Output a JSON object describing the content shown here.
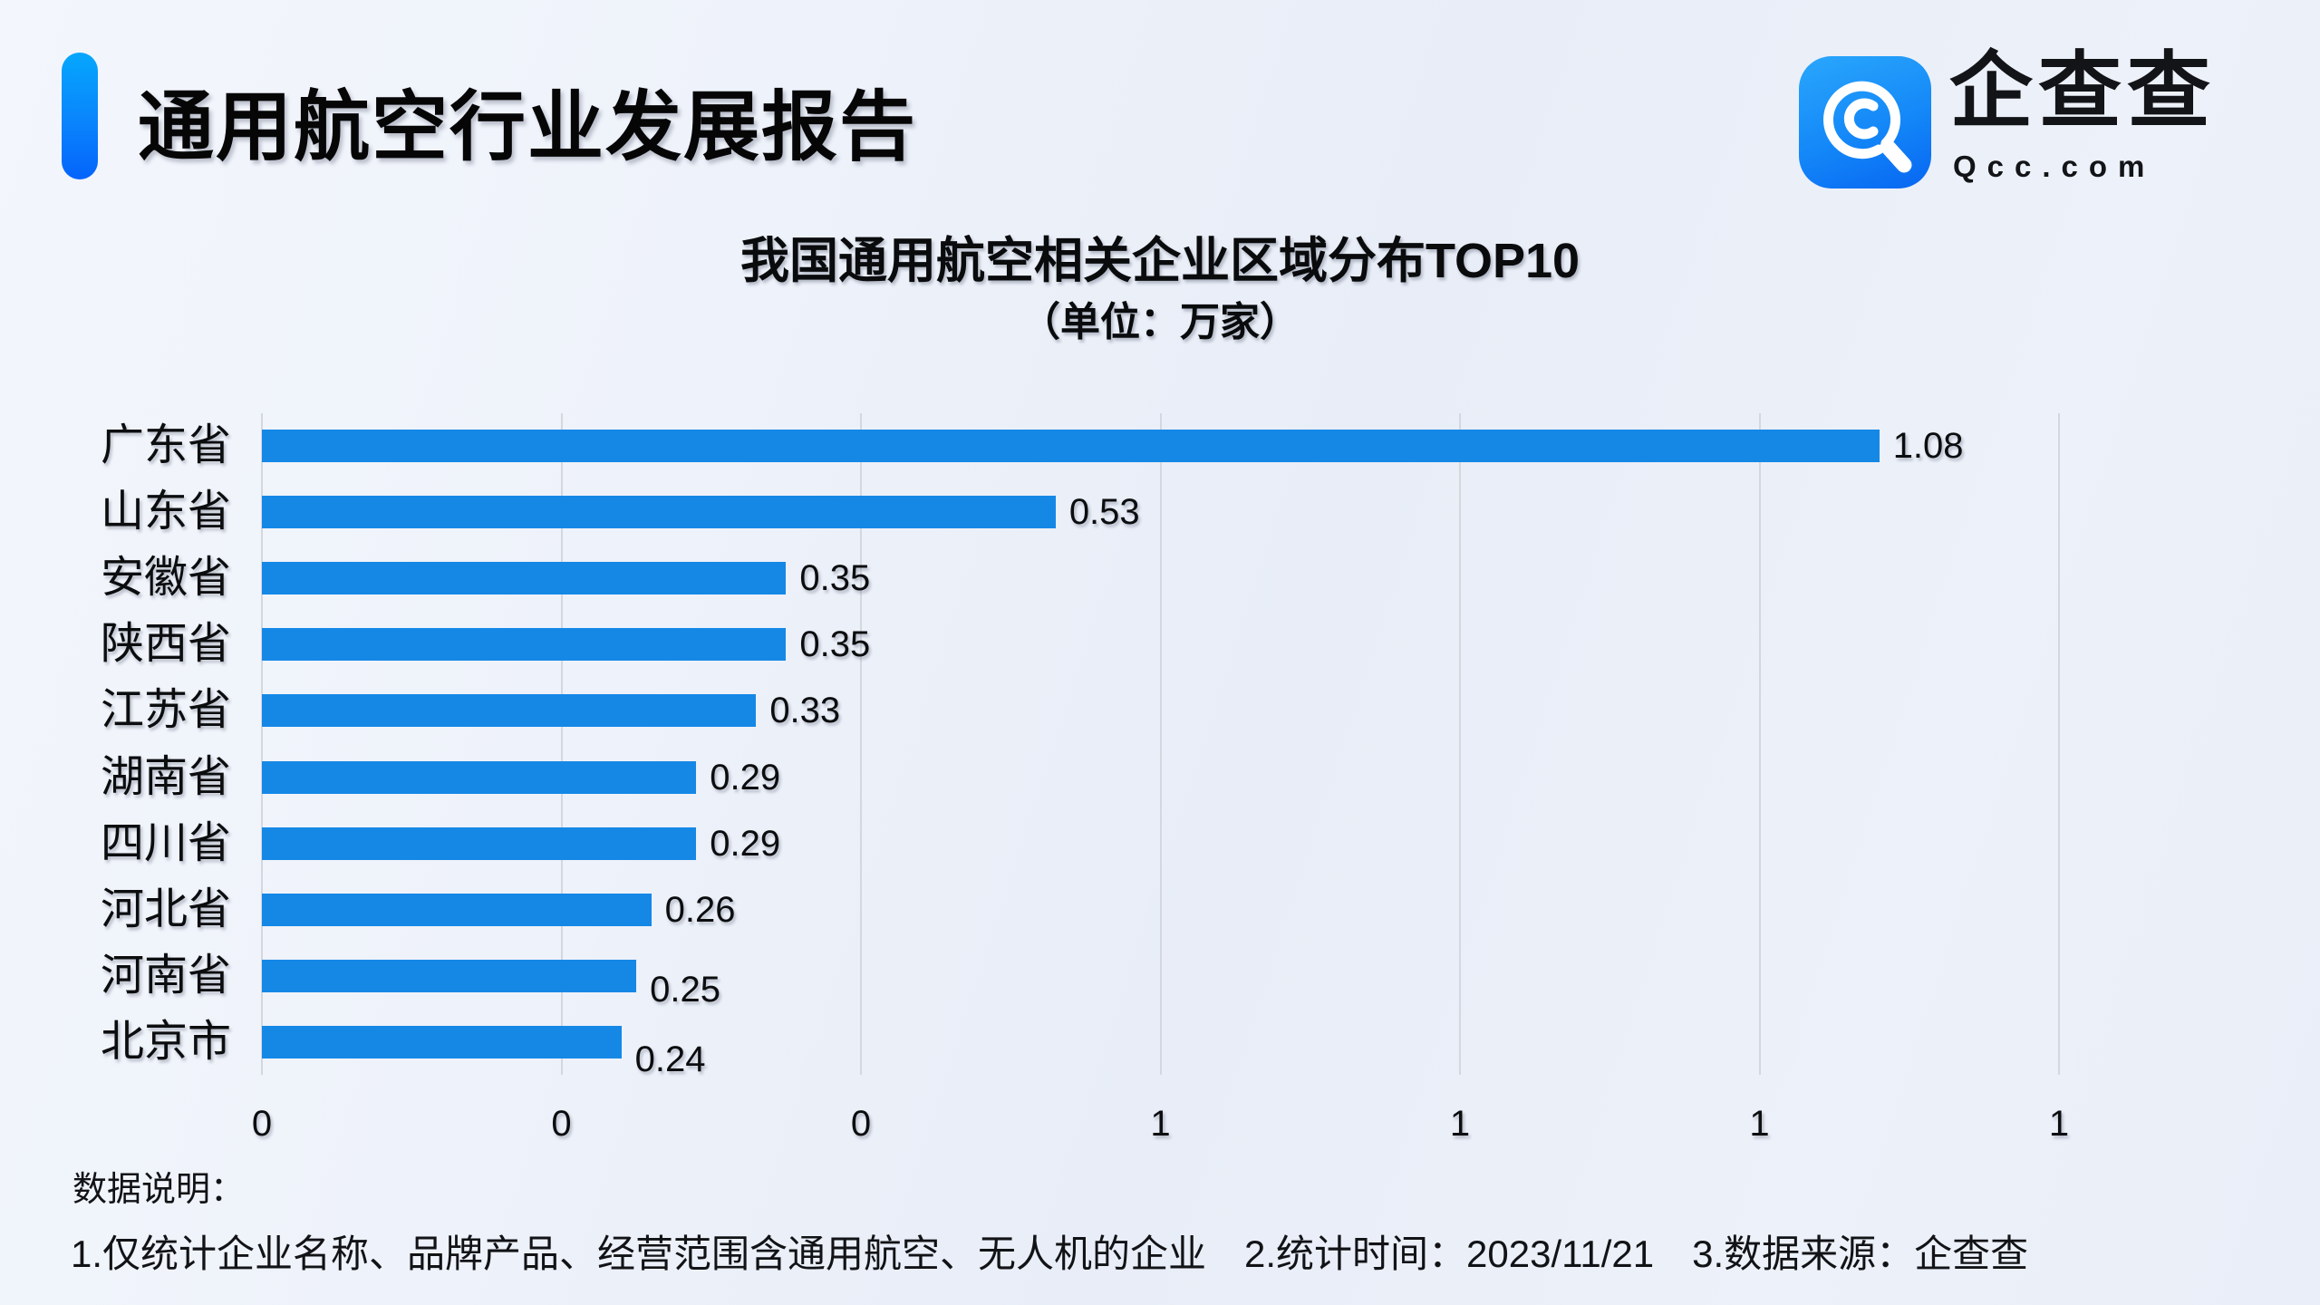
{
  "page": {
    "background_color": "#edf1f9",
    "accent_gradient_top": "#05a7fd",
    "accent_gradient_bottom": "#0464fb"
  },
  "header": {
    "title": "通用航空行业发展报告",
    "logo": {
      "icon": "qcc-magnifier-logo",
      "name_cn": "企查查",
      "domain": "Qcc.com",
      "icon_gradient_top": "#2aa7fc",
      "icon_gradient_bottom": "#0766f2"
    }
  },
  "chart_data": {
    "type": "bar",
    "orientation": "horizontal",
    "title": "我国通用航空相关企业区域分布TOP10",
    "unit_label": "（单位：万家）",
    "categories": [
      "广东省",
      "山东省",
      "安徽省",
      "陕西省",
      "江苏省",
      "湖南省",
      "四川省",
      "河北省",
      "河南省",
      "北京市"
    ],
    "values": [
      1.08,
      0.53,
      0.35,
      0.35,
      0.33,
      0.29,
      0.29,
      0.26,
      0.25,
      0.24
    ],
    "value_labels": [
      "1.08",
      "0.53",
      "0.35",
      "0.35",
      "0.33",
      "0.29",
      "0.29",
      "0.26",
      "0.25",
      "0.24"
    ],
    "bar_color": "#1588e6",
    "grid": true,
    "grid_color": "#d4d8de",
    "xlim": [
      0,
      1.2
    ],
    "x_ticks": [
      0,
      0.2,
      0.4,
      0.6,
      0.8,
      1.0,
      1.2
    ],
    "x_tick_labels": [
      "0",
      "0",
      "0",
      "1",
      "1",
      "1",
      "1"
    ],
    "legend": "none",
    "sorted": "descending"
  },
  "footer": {
    "heading": "数据说明：",
    "notes": [
      "1.仅统计企业名称、品牌产品、经营范围含通用航空、无人机的企业",
      "2.统计时间：2023/11/21",
      "3.数据来源：企查查"
    ]
  }
}
